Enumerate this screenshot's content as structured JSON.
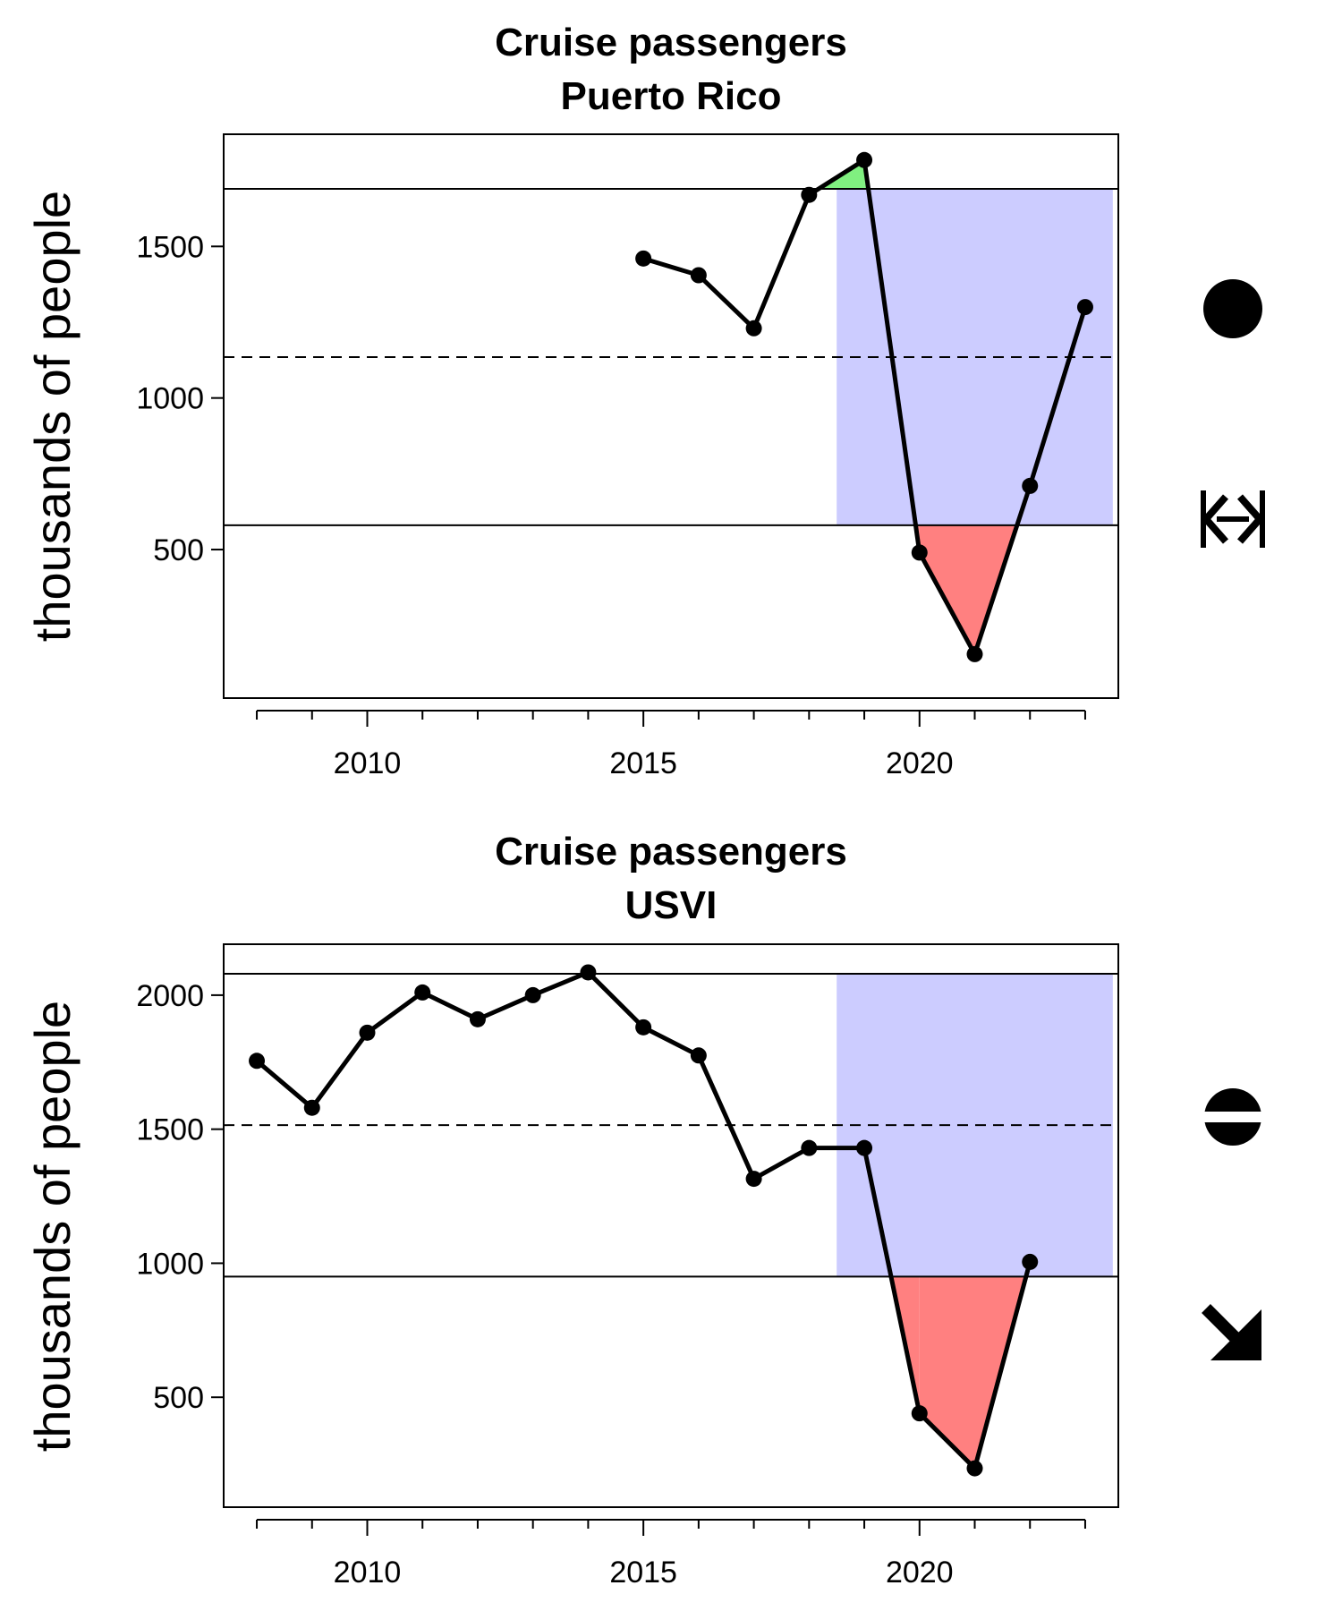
{
  "chart_data": [
    {
      "type": "line",
      "title": "Cruise passengers",
      "subtitle": "Puerto Rico",
      "xlabel": "",
      "ylabel": "thousands of people",
      "xlim": [
        2007.4,
        2023.6
      ],
      "ylim": [
        10,
        1870
      ],
      "x_ticks_major": [
        2010,
        2015,
        2020
      ],
      "x_ticks_minor": [
        2008,
        2009,
        2011,
        2012,
        2013,
        2014,
        2016,
        2017,
        2018,
        2019,
        2021,
        2022,
        2023
      ],
      "y_ticks": [
        500,
        1000,
        1500
      ],
      "series": [
        {
          "name": "Cruise passengers",
          "x": [
            2015,
            2016,
            2017,
            2018,
            2019,
            2020,
            2021,
            2022,
            2023
          ],
          "values": [
            1460,
            1405,
            1230,
            1670,
            1785,
            490,
            155,
            710,
            1300
          ]
        }
      ],
      "mean": 1135,
      "upper_bound": 1690,
      "lower_bound": 580,
      "recent_window": [
        2018.5,
        2023.5
      ],
      "colors": {
        "above": "#80f080",
        "below": "#ff8080",
        "window": "#ccccff"
      },
      "trend_icon": "filled-circle-icon"
    },
    {
      "type": "line",
      "title": "Cruise passengers",
      "subtitle": "USVI",
      "xlabel": "",
      "ylabel": "thousands of people",
      "xlim": [
        2007.4,
        2023.6
      ],
      "ylim": [
        90,
        2190
      ],
      "x_ticks_major": [
        2010,
        2015,
        2020
      ],
      "x_ticks_minor": [
        2008,
        2009,
        2011,
        2012,
        2013,
        2014,
        2016,
        2017,
        2018,
        2019,
        2021,
        2022,
        2023
      ],
      "y_ticks": [
        500,
        1000,
        1500,
        2000
      ],
      "series": [
        {
          "name": "Cruise passengers",
          "x": [
            2008,
            2009,
            2010,
            2011,
            2012,
            2013,
            2014,
            2015,
            2016,
            2017,
            2018,
            2019,
            2020,
            2021,
            2022
          ],
          "values": [
            1755,
            1580,
            1860,
            2010,
            1910,
            2000,
            2085,
            1880,
            1775,
            1315,
            1430,
            1430,
            440,
            235,
            1005
          ]
        }
      ],
      "mean": 1515,
      "upper_bound": 2080,
      "lower_bound": 950,
      "recent_window": [
        2018.5,
        2023.5
      ],
      "colors": {
        "above": "#80f080",
        "below": "#ff8080",
        "window": "#ccccff"
      },
      "trend_icon": "within-bounds-circle-icon",
      "trend_icon_2": "decreasing-arrow-icon"
    }
  ]
}
